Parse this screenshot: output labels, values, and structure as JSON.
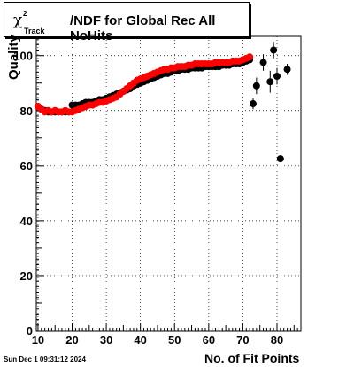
{
  "chart_data": {
    "type": "scatter",
    "title_parts": {
      "symbol": "χ",
      "sup": "2",
      "sub": "Track",
      "rest": "/NDF for Global Rec All NoHits"
    },
    "xlabel": "No. of Fit Points",
    "ylabel": "Quality",
    "xlim": [
      9.5,
      87
    ],
    "ylim": [
      0,
      107
    ],
    "xticks": [
      10,
      20,
      30,
      40,
      50,
      60,
      70,
      80
    ],
    "yticks": [
      0,
      20,
      40,
      60,
      80,
      100
    ],
    "grid": true,
    "series": [
      {
        "color": "#000000",
        "points": [
          [
            10,
            81.5
          ],
          [
            11,
            80.5
          ],
          [
            12,
            80
          ],
          [
            13,
            79.5
          ],
          [
            14,
            79.5
          ],
          [
            15,
            79.5
          ],
          [
            16,
            79.5
          ],
          [
            17,
            79.5
          ],
          [
            18,
            79.5
          ],
          [
            19,
            79.5
          ],
          [
            20,
            82
          ],
          [
            21,
            82
          ],
          [
            22,
            82
          ],
          [
            23,
            82.5
          ],
          [
            24,
            83
          ],
          [
            25,
            83
          ],
          [
            26,
            83
          ],
          [
            27,
            83.5
          ],
          [
            28,
            84
          ],
          [
            29,
            84
          ],
          [
            30,
            84.5
          ],
          [
            31,
            85
          ],
          [
            32,
            85.5
          ],
          [
            33,
            86
          ],
          [
            34,
            86.5
          ],
          [
            35,
            87
          ],
          [
            36,
            87.5
          ],
          [
            37,
            88
          ],
          [
            38,
            89
          ],
          [
            39,
            89.5
          ],
          [
            40,
            90
          ],
          [
            41,
            90.5
          ],
          [
            42,
            91
          ],
          [
            43,
            91.5
          ],
          [
            44,
            92
          ],
          [
            45,
            92.5
          ],
          [
            46,
            93
          ],
          [
            47,
            93.5
          ],
          [
            48,
            93.5
          ],
          [
            49,
            94
          ],
          [
            50,
            94.5
          ],
          [
            51,
            94.5
          ],
          [
            52,
            95
          ],
          [
            53,
            95
          ],
          [
            54,
            95
          ],
          [
            55,
            95.5
          ],
          [
            56,
            95.5
          ],
          [
            57,
            95.5
          ],
          [
            58,
            95.5
          ],
          [
            59,
            96
          ],
          [
            60,
            96
          ],
          [
            61,
            96
          ],
          [
            62,
            96
          ],
          [
            63,
            96
          ],
          [
            64,
            96.5
          ],
          [
            65,
            96.5
          ],
          [
            66,
            96.5
          ],
          [
            67,
            97
          ],
          [
            68,
            97
          ],
          [
            69,
            97
          ],
          [
            70,
            97.5
          ],
          [
            71,
            98
          ],
          [
            72,
            98.5
          ],
          [
            73,
            82.5
          ],
          [
            74,
            89
          ],
          [
            76,
            97.5
          ],
          [
            78,
            90.5
          ],
          [
            79,
            102
          ],
          [
            80,
            92.5
          ],
          [
            81,
            62.5
          ],
          [
            83,
            95
          ]
        ],
        "errors": [
          [
            73,
            2
          ],
          [
            74,
            3
          ],
          [
            76,
            3
          ],
          [
            78,
            4
          ],
          [
            79,
            3
          ],
          [
            80,
            3
          ],
          [
            81,
            1
          ],
          [
            83,
            2
          ]
        ]
      },
      {
        "color": "#ff0000",
        "points": [
          [
            10,
            81.5
          ],
          [
            11,
            80.5
          ],
          [
            12,
            79.5
          ],
          [
            13,
            80
          ],
          [
            14,
            79.5
          ],
          [
            15,
            80
          ],
          [
            16,
            79.5
          ],
          [
            17,
            79.5
          ],
          [
            18,
            80
          ],
          [
            19,
            79.5
          ],
          [
            20,
            79.5
          ],
          [
            21,
            80
          ],
          [
            22,
            80.5
          ],
          [
            23,
            81
          ],
          [
            24,
            81.5
          ],
          [
            25,
            82
          ],
          [
            26,
            82
          ],
          [
            27,
            82.5
          ],
          [
            28,
            83
          ],
          [
            29,
            83
          ],
          [
            30,
            83.5
          ],
          [
            31,
            84
          ],
          [
            32,
            84.5
          ],
          [
            33,
            85
          ],
          [
            34,
            86
          ],
          [
            35,
            87
          ],
          [
            36,
            88
          ],
          [
            37,
            89
          ],
          [
            38,
            90
          ],
          [
            39,
            91
          ],
          [
            40,
            91.5
          ],
          [
            41,
            92
          ],
          [
            42,
            92.5
          ],
          [
            43,
            93
          ],
          [
            44,
            93.5
          ],
          [
            45,
            94
          ],
          [
            46,
            94.5
          ],
          [
            47,
            95
          ],
          [
            48,
            95
          ],
          [
            49,
            95.5
          ],
          [
            50,
            95.5
          ],
          [
            51,
            96
          ],
          [
            52,
            96
          ],
          [
            53,
            96
          ],
          [
            54,
            96.5
          ],
          [
            55,
            96.5
          ],
          [
            56,
            97
          ],
          [
            57,
            97
          ],
          [
            58,
            97
          ],
          [
            59,
            97
          ],
          [
            60,
            97
          ],
          [
            61,
            97
          ],
          [
            62,
            97.5
          ],
          [
            63,
            97.5
          ],
          [
            64,
            97.5
          ],
          [
            65,
            97.5
          ],
          [
            66,
            97.5
          ],
          [
            67,
            98
          ],
          [
            68,
            98
          ],
          [
            69,
            98
          ],
          [
            70,
            98.5
          ],
          [
            71,
            99
          ],
          [
            72,
            99.5
          ]
        ]
      }
    ]
  },
  "footer": {
    "timestamp": "Sun Dec  1 09:31:12 2024"
  }
}
